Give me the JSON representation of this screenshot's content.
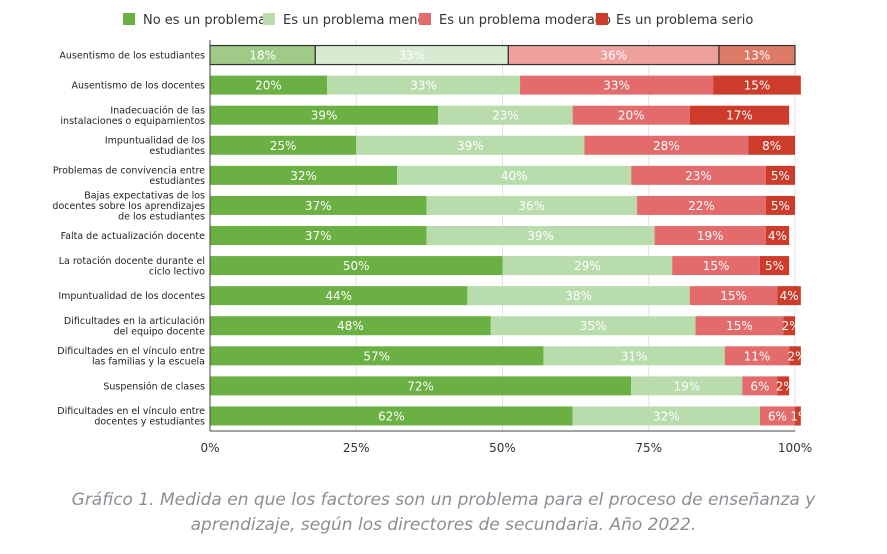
{
  "chart_data": {
    "type": "bar",
    "orientation": "horizontal",
    "stacked": true,
    "legend": [
      "No es un problema",
      "Es un problema menor",
      "Es un problema moderado",
      "Es un problema serio"
    ],
    "colors": [
      "#6ab042",
      "#b8dcac",
      "#e46b6b",
      "#cd3c2a"
    ],
    "highlight_colors": [
      "#9fca88",
      "#d8ebd2",
      "#eea09d",
      "#dd7a67"
    ],
    "categories": [
      "Ausentismo de los estudiantes",
      "Ausentismo de los docentes",
      "Inadecuación de las instalaciones o equipamientos",
      "Impuntualidad de los estudiantes",
      "Problemas de convivencia entre estudiantes",
      "Bajas expectativas de los docentes sobre los aprendizajes de los estudiantes",
      "Falta de actualización docente",
      "La rotación docente durante el ciclo lectivo",
      "Impuntualidad de los docentes",
      "Dificultades en la articulación del equipo docente",
      "Dificultades en el vínculo entre las familias y la escuela",
      "Suspensión de clases",
      "Dificultades en el vínculo entre docentes y estudiantes"
    ],
    "category_lines": [
      [
        "Ausentismo de los estudiantes"
      ],
      [
        "Ausentismo de los docentes"
      ],
      [
        "Inadecuación de las",
        "instalaciones o equipamientos"
      ],
      [
        "Impuntualidad de los",
        "estudiantes"
      ],
      [
        "Problemas de convivencia entre",
        "estudiantes"
      ],
      [
        "Bajas expectativas de los",
        "docentes sobre los aprendizajes",
        "de los estudiantes"
      ],
      [
        "Falta de actualización docente"
      ],
      [
        "La rotación docente durante el",
        "ciclo lectivo"
      ],
      [
        "Impuntualidad de los docentes"
      ],
      [
        "Dificultades en la articulación",
        "del equipo docente"
      ],
      [
        "Dificultades en el vínculo entre",
        "las familias y la escuela"
      ],
      [
        "Suspensión de clases"
      ],
      [
        "Dificultades en el vínculo entre",
        "docentes y estudiantes"
      ]
    ],
    "series": [
      {
        "name": "No es un problema",
        "values": [
          18,
          20,
          39,
          25,
          32,
          37,
          37,
          50,
          44,
          48,
          57,
          72,
          62
        ]
      },
      {
        "name": "Es un problema menor",
        "values": [
          33,
          33,
          23,
          39,
          40,
          36,
          39,
          29,
          38,
          35,
          31,
          19,
          32
        ]
      },
      {
        "name": "Es un problema moderado",
        "values": [
          36,
          33,
          20,
          28,
          23,
          22,
          19,
          15,
          15,
          15,
          11,
          6,
          6
        ]
      },
      {
        "name": "Es un problema serio",
        "values": [
          13,
          15,
          17,
          8,
          5,
          5,
          4,
          5,
          4,
          2,
          2,
          2,
          1
        ]
      }
    ],
    "highlighted_category": "Ausentismo de los estudiantes",
    "xlim": [
      0,
      100
    ],
    "xticks": [
      0,
      25,
      50,
      75,
      100
    ],
    "xtick_labels": [
      "0%",
      "25%",
      "50%",
      "75%",
      "100%"
    ],
    "value_suffix": "%",
    "legend_position": "top",
    "grid": "vertical"
  },
  "caption": {
    "line1": "Gráfico 1. Medida en que los factores son un problema para el proceso de enseñanza y",
    "line2": "aprendizaje, según los directores de secundaria. Año 2022."
  }
}
